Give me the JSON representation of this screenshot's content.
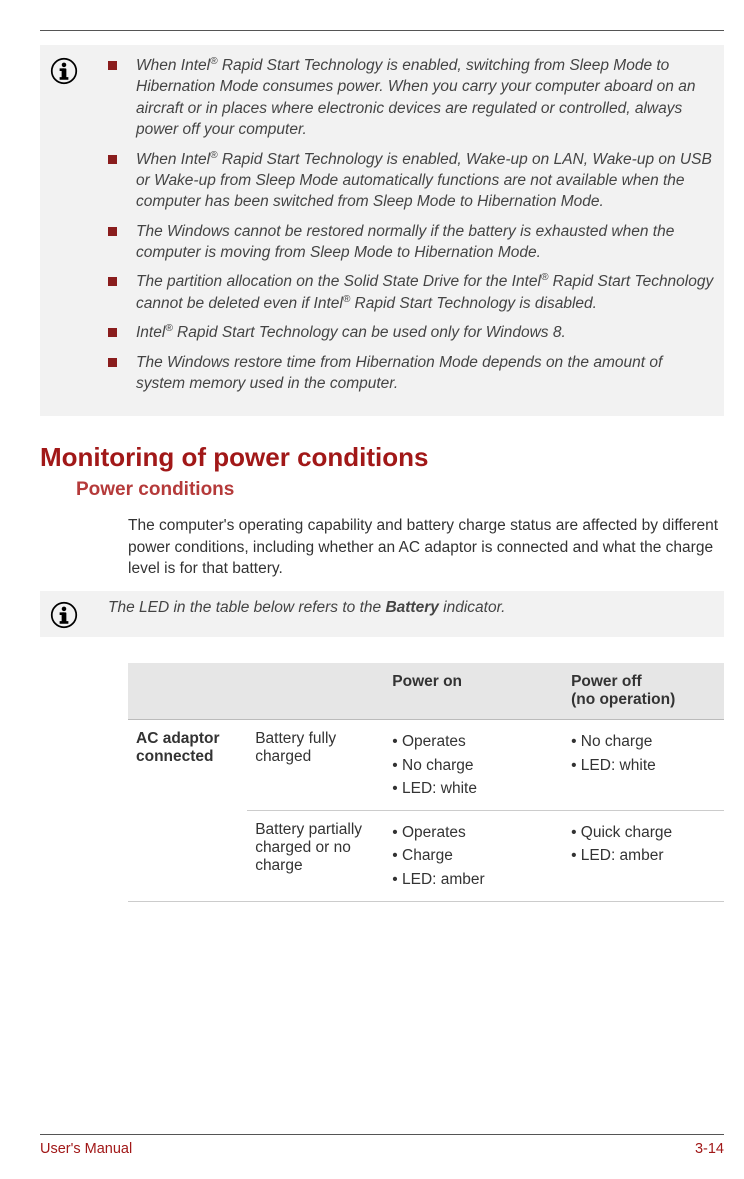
{
  "colors": {
    "noteBg": "#f2f2f2",
    "bulletSquare": "#8a1d1d",
    "h1": "#a11818",
    "h2": "#b53a3a",
    "footer": "#a11818",
    "tableHeaderBg": "#e6e6e6",
    "ruleColor": "#555555",
    "rowBorder": "#cccccc",
    "bodyText": "#333333"
  },
  "note1": {
    "items_html": [
      "When Intel<sup>®</sup> Rapid Start Technology is enabled, switching from Sleep Mode to Hibernation Mode consumes power. When you carry your computer aboard on an aircraft or in places where electronic devices are regulated or controlled, always power off your computer.",
      "When Intel<sup>®</sup> Rapid Start Technology is enabled, Wake-up on LAN, Wake-up on USB or Wake-up from Sleep Mode automatically functions are not available when the computer has been switched from Sleep Mode to Hibernation Mode.",
      "The Windows cannot be restored normally if the battery is exhausted when the computer is moving from Sleep Mode to Hibernation Mode.",
      "The partition allocation on the Solid State Drive for the Intel<sup>®</sup> Rapid Start Technology cannot be deleted even if Intel<sup>®</sup> Rapid Start Technology is disabled.",
      "Intel<sup>®</sup> Rapid Start Technology can be used only for Windows 8.",
      "The Windows restore time from Hibernation Mode depends on the amount of system memory used in the computer."
    ]
  },
  "heading1": "Monitoring of power conditions",
  "heading2": "Power conditions",
  "paragraph": "The computer's operating capability and battery charge status are affected by different power conditions, including whether an AC adaptor is connected and what the charge level is for that battery.",
  "note2_html": "The LED in the table below refers to the <span class=\"bold\">Battery</span> indicator.",
  "table": {
    "columns": [
      "",
      "",
      "Power on",
      "Power off\n(no operation)"
    ],
    "rows": [
      {
        "rowhead": "AC adaptor connected",
        "state": "Battery fully charged",
        "on": [
          "• Operates",
          "• No charge",
          "• LED: white"
        ],
        "off": [
          "• No charge",
          "• LED: white"
        ]
      },
      {
        "rowhead": "",
        "state": "Battery partially charged or no charge",
        "on": [
          "• Operates",
          "• Charge",
          "• LED: amber"
        ],
        "off": [
          "• Quick charge",
          "• LED: amber"
        ]
      }
    ],
    "col_widths_pct": [
      20,
      23,
      30,
      27
    ]
  },
  "footer": {
    "left": "User's Manual",
    "right": "3-14"
  }
}
